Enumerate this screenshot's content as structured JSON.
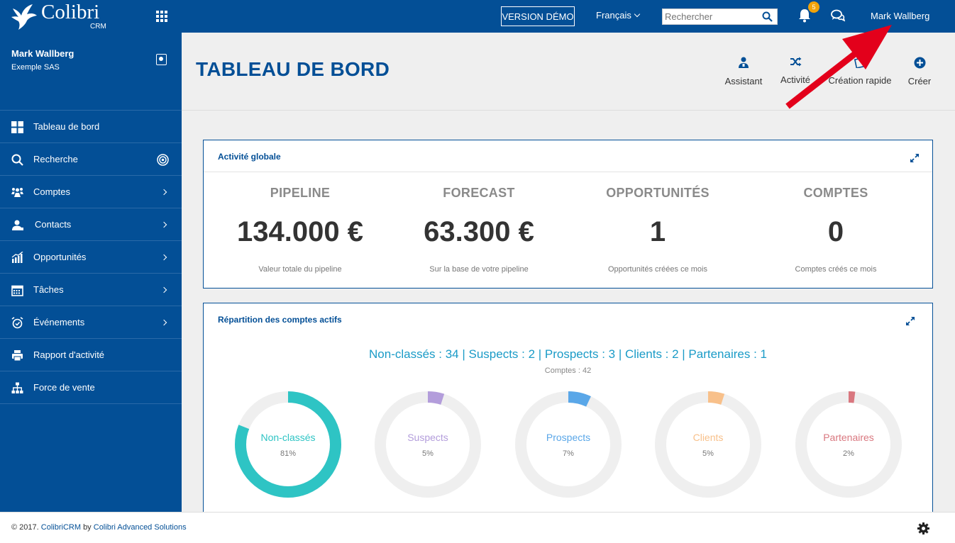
{
  "header": {
    "logo_text": "Colibri",
    "logo_sub": "CRM",
    "demo_label": "VERSION DÉMO",
    "language": "Français",
    "search_placeholder": "Rechercher",
    "notifications_count": "5",
    "user_name": "Mark Wallberg"
  },
  "sidebar": {
    "user_name": "Mark Wallberg",
    "company": "Exemple SAS",
    "items": [
      {
        "label": "Tableau de bord",
        "icon": "dashboard-icon"
      },
      {
        "label": "Recherche",
        "icon": "search-icon"
      },
      {
        "label": "Comptes",
        "icon": "accounts-icon"
      },
      {
        "label": "Contacts",
        "icon": "contacts-icon"
      },
      {
        "label": "Opportunités",
        "icon": "chart-icon"
      },
      {
        "label": "Tâches",
        "icon": "calendar-icon"
      },
      {
        "label": "Événements",
        "icon": "alarm-icon"
      },
      {
        "label": "Rapport d'activité",
        "icon": "printer-icon"
      },
      {
        "label": "Force de vente",
        "icon": "org-chart-icon"
      }
    ]
  },
  "page": {
    "title": "TABLEAU DE BORD",
    "actions": [
      {
        "label": "Assistant",
        "icon": "assistant-icon"
      },
      {
        "label": "Activité",
        "icon": "shuffle-icon"
      },
      {
        "label": "Création rapide",
        "icon": "quick-create-icon"
      },
      {
        "label": "Créer",
        "icon": "plus-circle-icon"
      }
    ]
  },
  "activity": {
    "title": "Activité globale",
    "kpis": [
      {
        "label": "PIPELINE",
        "value": "134.000 €",
        "sub": "Valeur totale du pipeline"
      },
      {
        "label": "FORECAST",
        "value": "63.300 €",
        "sub": "Sur la base de votre pipeline"
      },
      {
        "label": "OPPORTUNITÉS",
        "value": "1",
        "sub": "Opportunités créées ce mois"
      },
      {
        "label": "COMPTES",
        "value": "0",
        "sub": "Comptes créés ce mois"
      }
    ]
  },
  "distribution": {
    "title": "Répartition des comptes actifs",
    "summary": "Non-classés : 34 | Suspects : 2 | Prospects : 3 | Clients : 2 | Partenaires : 1",
    "summary_sub": "Comptes : 42",
    "donuts": [
      {
        "label": "Non-classés",
        "pct": "81%",
        "fraction": 0.81,
        "color": "#2ec4c4"
      },
      {
        "label": "Suspects",
        "pct": "5%",
        "fraction": 0.05,
        "color": "#b39ddb"
      },
      {
        "label": "Prospects",
        "pct": "7%",
        "fraction": 0.07,
        "color": "#5aa7e8"
      },
      {
        "label": "Clients",
        "pct": "5%",
        "fraction": 0.05,
        "color": "#f8c08a"
      },
      {
        "label": "Partenaires",
        "pct": "2%",
        "fraction": 0.02,
        "color": "#d9777f"
      }
    ]
  },
  "footer": {
    "copyright": "© 2017.",
    "brand": "ColibriCRM",
    "by": "by",
    "company": "Colibri Advanced Solutions"
  },
  "colors": {
    "primary": "#034f96",
    "annotation": "#e3001b"
  }
}
